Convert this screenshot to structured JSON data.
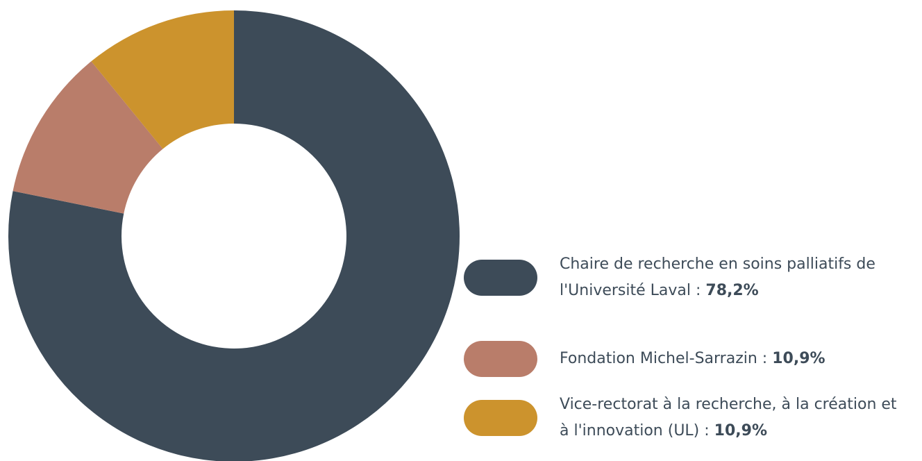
{
  "chart_data": {
    "type": "donut",
    "series": [
      {
        "name": "Chaire de recherche en soins palliatifs de l'Université Laval :",
        "color": "#3d4b58",
        "values": [
          78.2
        ],
        "value_labels": [
          "78,2%"
        ]
      },
      {
        "name": "Fondation Michel-Sarrazin :",
        "color": "#b97d6a",
        "values": [
          10.9
        ],
        "value_labels": [
          "10,9%"
        ]
      },
      {
        "name": "Vice-rectorat à la recherche, à la création et à l'innovation (UL) :",
        "color": "#cc932d",
        "values": [
          10.9
        ],
        "value_labels": [
          "10,9%"
        ]
      }
    ]
  }
}
